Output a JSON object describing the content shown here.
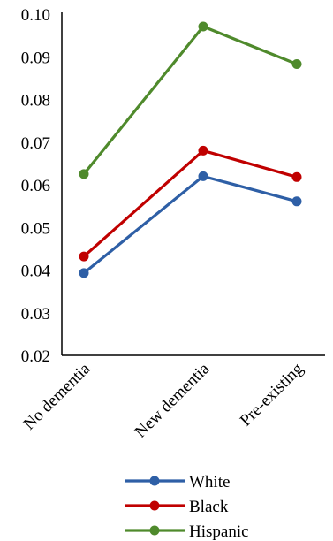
{
  "chart_data": {
    "type": "line",
    "title": "",
    "xlabel": "",
    "ylabel": "",
    "categories": [
      "No dementia",
      "New dementia",
      "Pre-existing"
    ],
    "ylim": [
      0.02,
      0.1
    ],
    "yticks": [
      "0.10",
      "0.09",
      "0.08",
      "0.07",
      "0.06",
      "0.05",
      "0.04",
      "0.03",
      "0.02"
    ],
    "ytick_values": [
      0.1,
      0.09,
      0.08,
      0.07,
      0.06,
      0.05,
      0.04,
      0.03,
      0.02
    ],
    "grid": false,
    "legend_position": "bottom",
    "series": [
      {
        "name": "White",
        "color": "#2e5fa6",
        "values": [
          0.0393,
          0.062,
          0.0561
        ]
      },
      {
        "name": "Black",
        "color": "#c00000",
        "values": [
          0.0432,
          0.068,
          0.0618
        ]
      },
      {
        "name": "Hispanic",
        "color": "#4f8a2c",
        "values": [
          0.0625,
          0.0971,
          0.0883
        ]
      }
    ]
  }
}
